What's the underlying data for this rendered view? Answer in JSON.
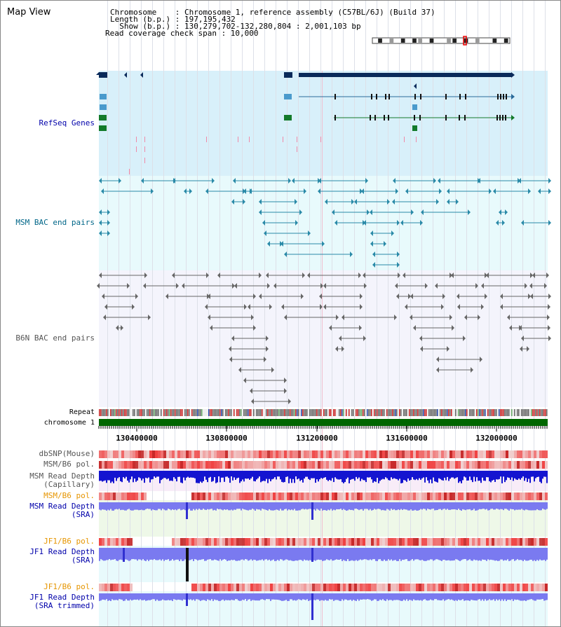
{
  "header": {
    "title": "Map View",
    "chromosome_line": "Chromosome    : Chromosome 1, reference assembly (C57BL/6J) (Build 37)",
    "length_line": "Length (b.p.) : 197,195,432",
    "show_line": "  Show (b.p.) : 130,279,702-132,280,804 : 2,001,103 bp",
    "coverage_line": "Read coverage check span : 10,000"
  },
  "tracks": {
    "refseq": "RefSeq Genes",
    "msm_bac": "MSM BAC end pairs",
    "b6n_bac": "B6N BAC end pairs",
    "repeat": "Repeat",
    "chromosome": "chromosome 1",
    "dbsnp": "dbSNP(Mouse)",
    "msm_pol_1": "MSM/B6 pol.",
    "msm_depth_cap_1": "MSM Read Depth",
    "msm_depth_cap_2": "(Capillary)",
    "msm_pol_2": "MSM/B6 pol.",
    "msm_depth_sra_1": "MSM Read Depth",
    "msm_depth_sra_2": "(SRA)",
    "jf1_pol_1": "JF1/B6 pol.",
    "jf1_depth_sra_1": "JF1 Read Depth",
    "jf1_depth_sra_2": "(SRA)",
    "jf1_pol_2": "JF1/B6 pol.",
    "jf1_depth_trim_1": "JF1 Read Depth",
    "jf1_depth_trim_2": "(SRA trimmed)"
  },
  "axis": {
    "ticks": [
      "130400000",
      "130800000",
      "131200000",
      "131600000",
      "132000000"
    ]
  },
  "colors": {
    "label_blue": "#0000aa",
    "label_teal": "#006688",
    "label_gray": "#555555",
    "label_orange": "#e69500",
    "refseq_bg": "#d8f0fa",
    "msm_bac_bg": "#e8fafc",
    "b6n_bac_bg": "#f4f4fc",
    "depth_blue": "#2020e0",
    "chromosome_green": "#006600"
  }
}
